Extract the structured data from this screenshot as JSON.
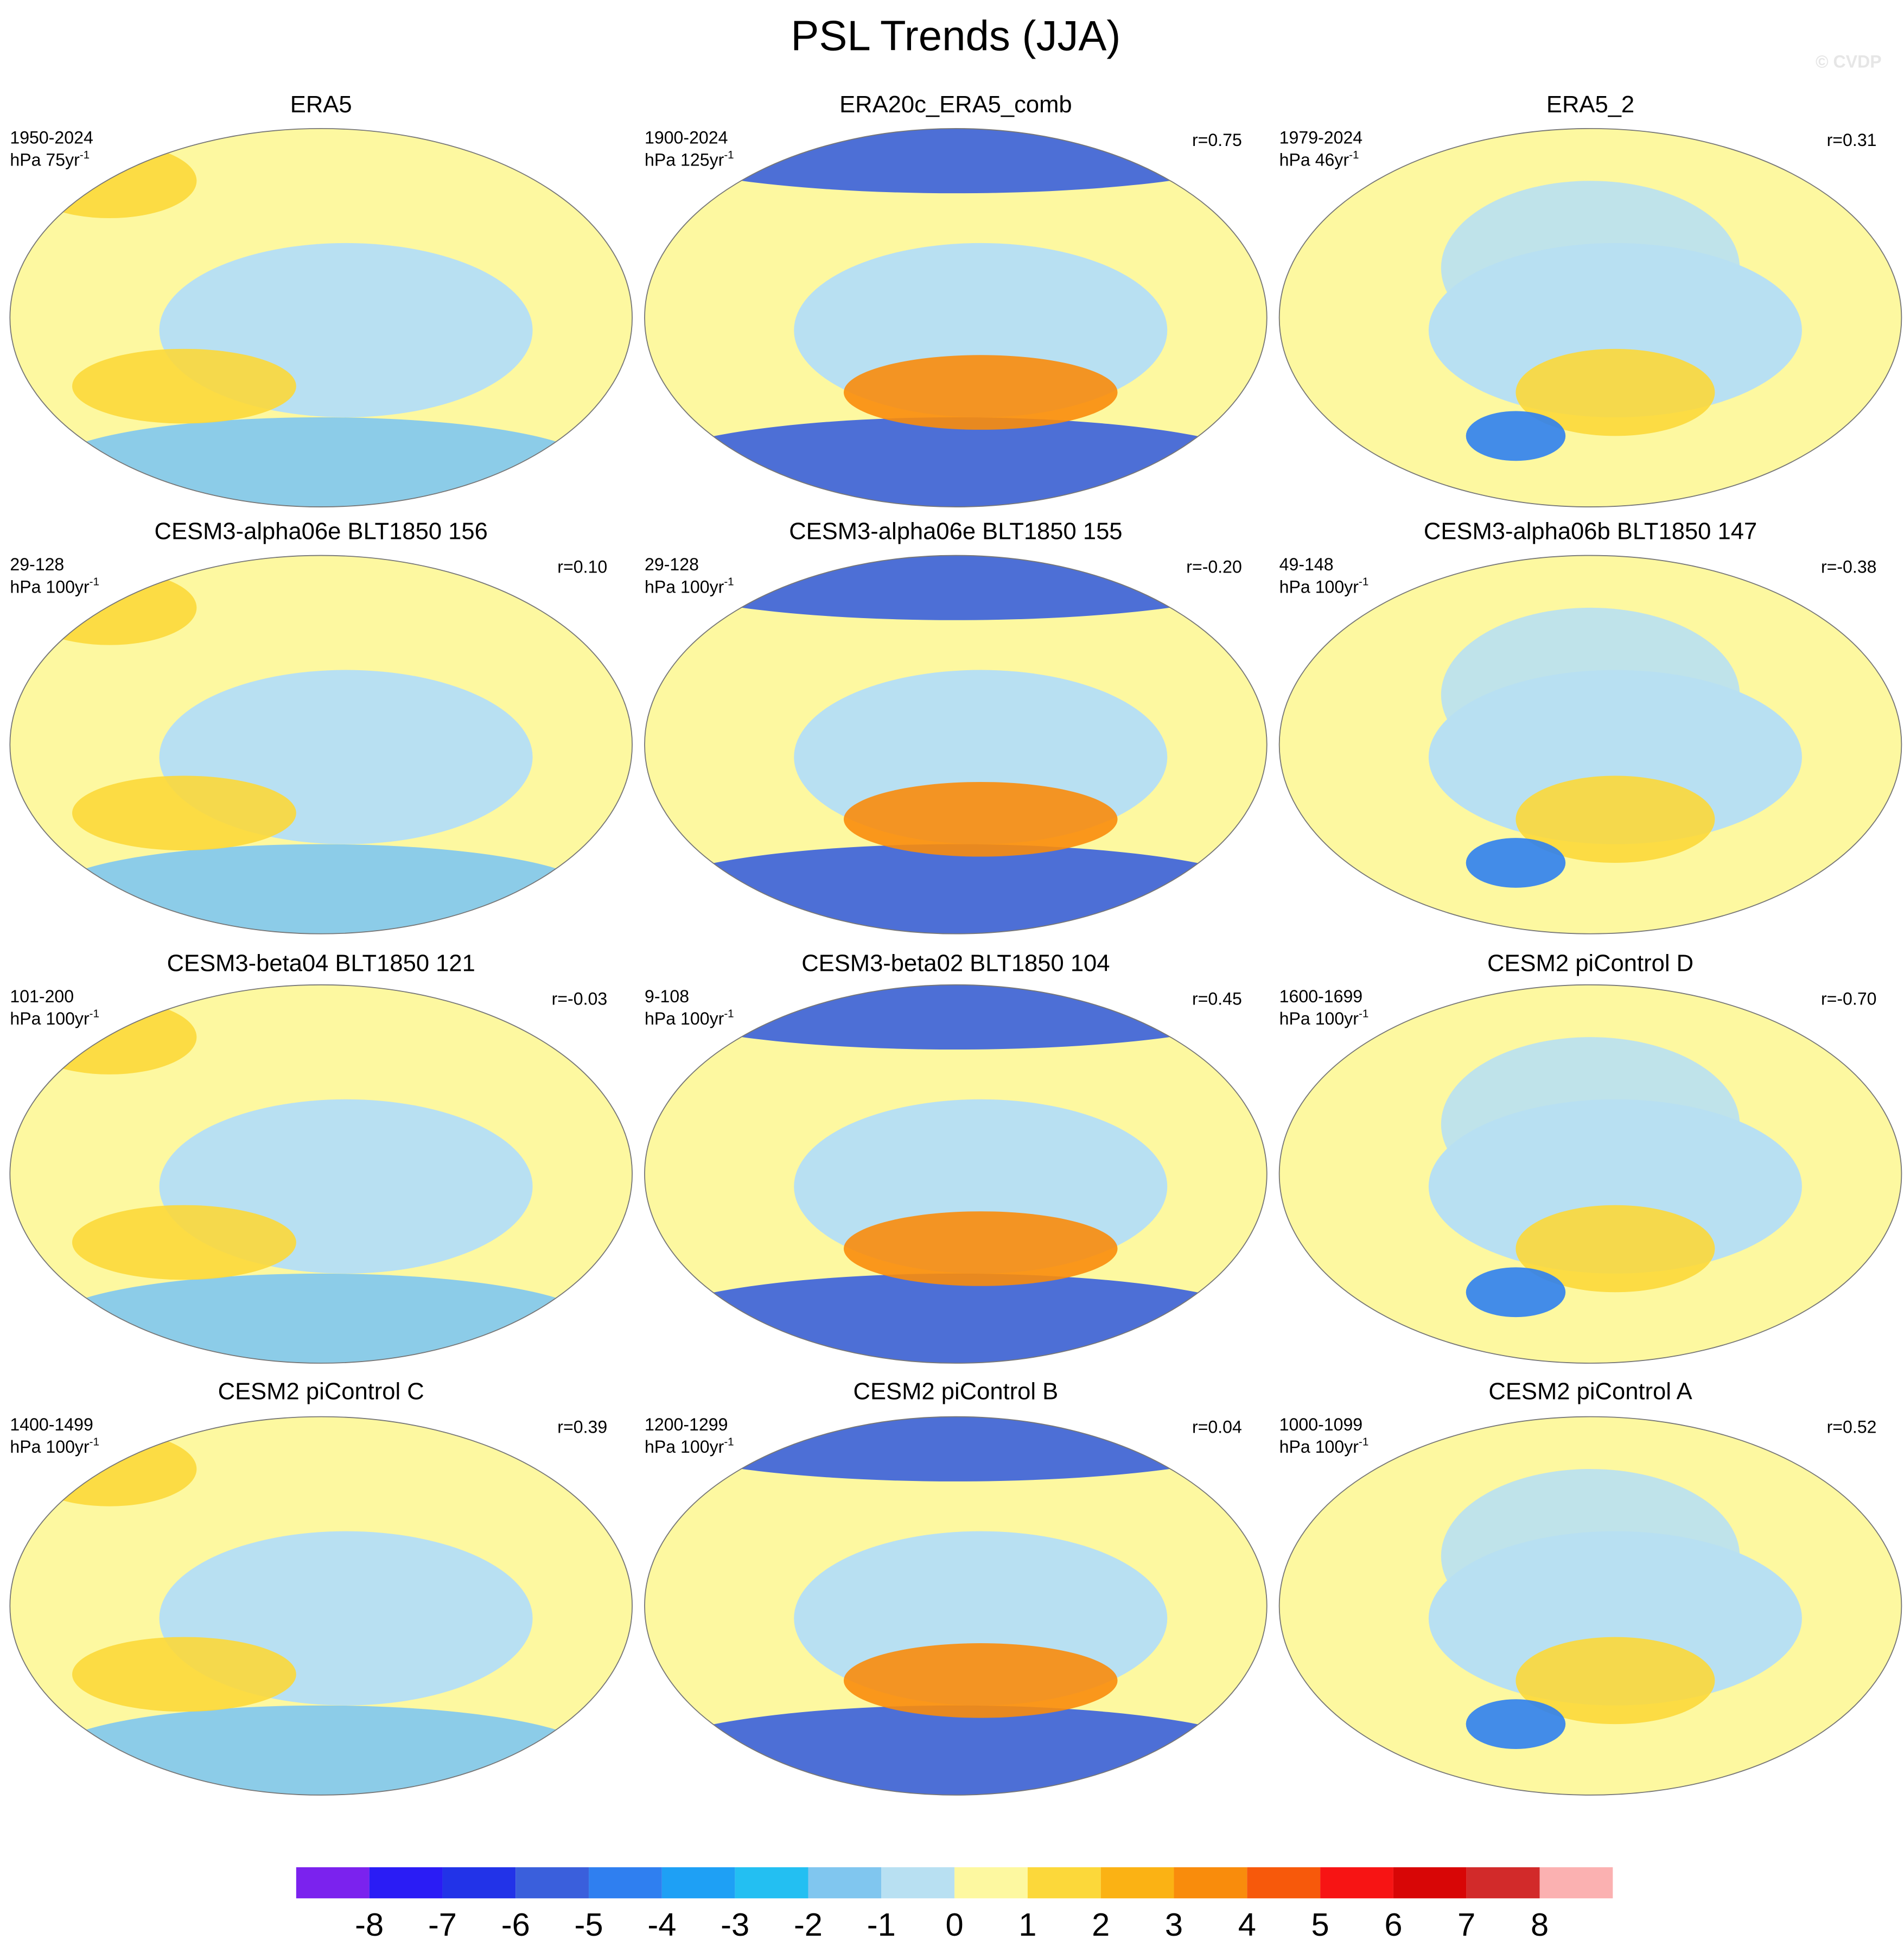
{
  "title": "PSL Trends (JJA)",
  "watermark": "© CVDP",
  "panels": [
    {
      "title": "ERA5",
      "period": "1950-2024",
      "units": "hPa 75yr",
      "units_exp": "-1"
    },
    {
      "title": "ERA20c_ERA5_comb",
      "period": "1900-2024",
      "units": "hPa 125yr",
      "units_exp": "-1",
      "r": "r=0.75"
    },
    {
      "title": "ERA5_2",
      "period": "1979-2024",
      "units": "hPa 46yr",
      "units_exp": "-1",
      "r": "r=0.31"
    },
    {
      "title": "CESM3-alpha06e BLT1850 156",
      "period": "29-128",
      "units": "hPa 100yr",
      "units_exp": "-1",
      "r": "r=0.10"
    },
    {
      "title": "CESM3-alpha06e BLT1850 155",
      "period": "29-128",
      "units": "hPa 100yr",
      "units_exp": "-1",
      "r": "r=-0.20"
    },
    {
      "title": "CESM3-alpha06b BLT1850 147",
      "period": "49-148",
      "units": "hPa 100yr",
      "units_exp": "-1",
      "r": "r=-0.38"
    },
    {
      "title": "CESM3-beta04 BLT1850 121",
      "period": "101-200",
      "units": "hPa 100yr",
      "units_exp": "-1",
      "r": "r=-0.03"
    },
    {
      "title": "CESM3-beta02 BLT1850 104",
      "period": "9-108",
      "units": "hPa 100yr",
      "units_exp": "-1",
      "r": "r=0.45"
    },
    {
      "title": "CESM2 piControl D",
      "period": "1600-1699",
      "units": "hPa 100yr",
      "units_exp": "-1",
      "r": "r=-0.70"
    },
    {
      "title": "CESM2 piControl C",
      "period": "1400-1499",
      "units": "hPa 100yr",
      "units_exp": "-1",
      "r": "r=0.39"
    },
    {
      "title": "CESM2 piControl B",
      "period": "1200-1299",
      "units": "hPa 100yr",
      "units_exp": "-1",
      "r": "r=0.04"
    },
    {
      "title": "CESM2 piControl A",
      "period": "1000-1099",
      "units": "hPa 100yr",
      "units_exp": "-1",
      "r": "r=0.52"
    }
  ],
  "colorbar": {
    "colors": [
      "#7b22ee",
      "#2a1cf5",
      "#2233e8",
      "#3a5fdc",
      "#2f7ff0",
      "#1ea0f5",
      "#23bff2",
      "#80c6ef",
      "#b8e0f2",
      "#fdf8a0",
      "#fcd83a",
      "#fbb214",
      "#f98c0c",
      "#f7590b",
      "#f71414",
      "#d80606",
      "#d22a2a",
      "#fbb1b1"
    ],
    "ticks": [
      -8,
      -7,
      -6,
      -5,
      -4,
      -3,
      -2,
      -1,
      0,
      1,
      2,
      3,
      4,
      5,
      6,
      7,
      8
    ]
  }
}
